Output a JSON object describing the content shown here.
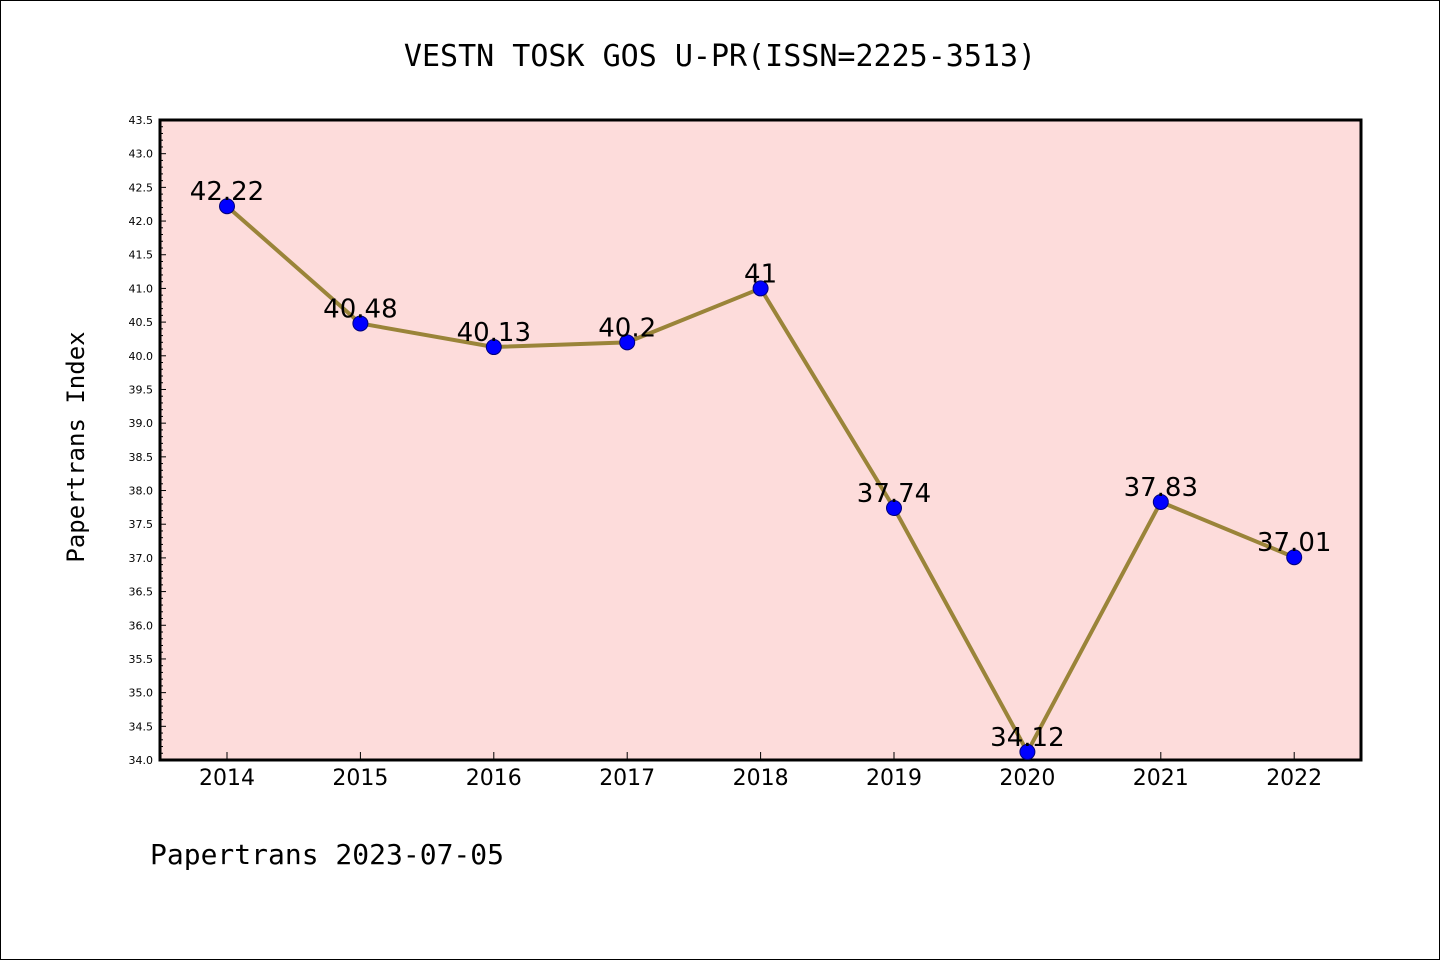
{
  "chart_data": {
    "type": "line",
    "title": "VESTN TOSK GOS U-PR(ISSN=2225-3513)",
    "ylabel": "Papertrans Index",
    "xlabel": "",
    "footer": "Papertrans 2023-07-05",
    "categories": [
      "2014",
      "2015",
      "2016",
      "2017",
      "2018",
      "2019",
      "2020",
      "2021",
      "2022"
    ],
    "values": [
      42.22,
      40.48,
      40.13,
      40.2,
      41,
      37.74,
      34.12,
      37.83,
      37.01
    ],
    "data_labels": [
      "42.22",
      "40.48",
      "40.13",
      "40.2",
      "41",
      "37.74",
      "34.12",
      "37.83",
      "37.01"
    ],
    "ylim": [
      34.0,
      43.5
    ],
    "yticks": [
      "34.0",
      "34.5",
      "35.0",
      "35.5",
      "36.0",
      "36.5",
      "37.0",
      "37.5",
      "38.0",
      "38.5",
      "39.0",
      "39.5",
      "40.0",
      "40.5",
      "41.0",
      "41.5",
      "42.0",
      "42.5",
      "43.0",
      "43.5"
    ],
    "grid": false,
    "colors": {
      "plot_background": "#fddcdb",
      "line": "#9a8439",
      "marker": "#0000ff",
      "marker_edge": "#00007a"
    }
  }
}
